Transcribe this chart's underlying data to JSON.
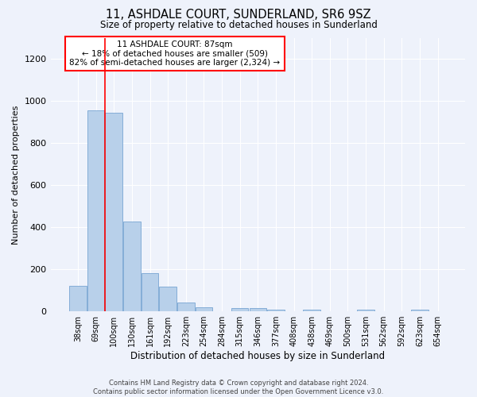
{
  "title": "11, ASHDALE COURT, SUNDERLAND, SR6 9SZ",
  "subtitle": "Size of property relative to detached houses in Sunderland",
  "xlabel": "Distribution of detached houses by size in Sunderland",
  "ylabel": "Number of detached properties",
  "footer_line1": "Contains HM Land Registry data © Crown copyright and database right 2024.",
  "footer_line2": "Contains public sector information licensed under the Open Government Licence v3.0.",
  "categories": [
    "38sqm",
    "69sqm",
    "100sqm",
    "130sqm",
    "161sqm",
    "192sqm",
    "223sqm",
    "254sqm",
    "284sqm",
    "315sqm",
    "346sqm",
    "377sqm",
    "408sqm",
    "438sqm",
    "469sqm",
    "500sqm",
    "531sqm",
    "562sqm",
    "592sqm",
    "623sqm",
    "654sqm"
  ],
  "values": [
    120,
    955,
    945,
    428,
    182,
    118,
    42,
    20,
    0,
    15,
    15,
    10,
    0,
    8,
    0,
    0,
    8,
    0,
    0,
    8,
    0
  ],
  "bar_color": "#b8d0ea",
  "bar_edge_color": "#6699cc",
  "ylim": [
    0,
    1300
  ],
  "yticks": [
    0,
    200,
    400,
    600,
    800,
    1000,
    1200
  ],
  "annotation_line1": "11 ASHDALE COURT: 87sqm",
  "annotation_line2": "← 18% of detached houses are smaller (509)",
  "annotation_line3": "82% of semi-detached houses are larger (2,324) →",
  "vline_x_index": 1.5,
  "background_color": "#eef2fb",
  "grid_color": "#ffffff"
}
